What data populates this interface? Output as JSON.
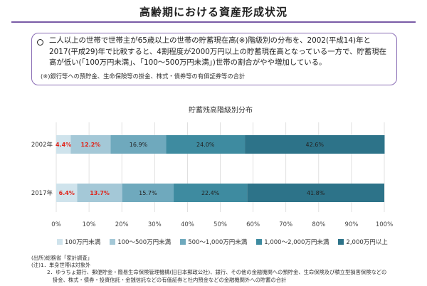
{
  "page": {
    "title": "高齢期における資産形成状況"
  },
  "summary": {
    "text": "二人以上の世帯で世帯主が65歳以上の世帯の貯蓄現在高(※)階級別の分布を、2002(平成14)年と2017(平成29)年で比較すると、4割程度が2000万円以上の貯蓄現在高となっている一方で、貯蓄現在高が低い(「100万円未満」、「100～500万円未満」)世帯の割合がやや増加している。",
    "note": "(※)銀行等への預貯金、生命保険等の掛金、株式・債券等の有価証券等の合計"
  },
  "chart_data": {
    "type": "bar",
    "orientation": "horizontal",
    "stacked": true,
    "title": "貯蓄残高階級別分布",
    "categories": [
      "2002年",
      "2017年"
    ],
    "series": [
      {
        "name": "100万円未満",
        "values": [
          4.4,
          6.4
        ],
        "color": "#cfe3ec"
      },
      {
        "name": "100～500万円未満",
        "values": [
          12.2,
          13.7
        ],
        "color": "#a4c8d7"
      },
      {
        "name": "500～1,000万円未満",
        "values": [
          16.9,
          15.7
        ],
        "color": "#6fa9bd"
      },
      {
        "name": "1,000～2,000万円未満",
        "values": [
          24.0,
          22.4
        ],
        "color": "#3e8ba0"
      },
      {
        "name": "2,000万円以上",
        "values": [
          42.6,
          41.8
        ],
        "color": "#2d7389"
      }
    ],
    "value_labels": [
      [
        "4.4%",
        "12.2%",
        "16.9%",
        "24.0%",
        "42.6%"
      ],
      [
        "6.4%",
        "13.7%",
        "15.7%",
        "22.4%",
        "41.8%"
      ]
    ],
    "highlight_series_indices": [
      0,
      1
    ],
    "highlight_label_color": "#e0251b",
    "xlim": [
      0,
      100
    ],
    "x_ticks": [
      "0%",
      "10%",
      "20%",
      "30%",
      "40%",
      "50%",
      "60%",
      "70%",
      "80%",
      "90%",
      "100%"
    ],
    "grid": true,
    "legend_position": "bottom"
  },
  "footnotes": {
    "lines": [
      "(出所)総務省「家計調査」",
      "(注)1．単身世帯は対象外",
      "2．ゆうちょ銀行、郵便貯金・簡易生命保険管理機構(旧日本郵政公社)、銀行、その他の金融機関への預貯金、生命保険及び積立型損害保険などの",
      "掛金、株式・債券・投資信託・金銭信託などの有価証券と社内預金などの金融機関外への貯蓄の合計"
    ]
  }
}
